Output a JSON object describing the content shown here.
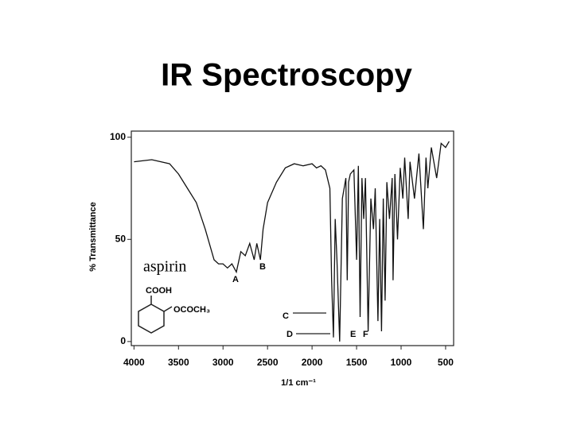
{
  "chart_data": {
    "type": "line",
    "title": "IR Spectroscopy",
    "x_label": "1/1 cm⁻¹",
    "y_label": "% Transmittance",
    "annotations": [
      "aspirin",
      "A",
      "B",
      "C",
      "D",
      "E",
      "F",
      "COOH",
      "OCOCH₃"
    ],
    "xlim": [
      4030,
      410
    ],
    "xticks": [
      4000,
      3500,
      3000,
      2500,
      2000,
      1500,
      1000,
      500
    ],
    "ylim": [
      -2,
      103
    ],
    "yticks": [
      0,
      50,
      100
    ],
    "series": [
      {
        "name": "aspirin",
        "color": "#111111",
        "x": [
          4000,
          3800,
          3600,
          3500,
          3400,
          3300,
          3200,
          3100,
          3050,
          3000,
          2950,
          2900,
          2850,
          2800,
          2750,
          2700,
          2650,
          2620,
          2580,
          2550,
          2500,
          2400,
          2300,
          2200,
          2100,
          2000,
          1950,
          1900,
          1850,
          1800,
          1780,
          1760,
          1740,
          1720,
          1690,
          1660,
          1620,
          1605,
          1590,
          1570,
          1530,
          1500,
          1480,
          1460,
          1440,
          1420,
          1400,
          1370,
          1340,
          1310,
          1290,
          1260,
          1240,
          1220,
          1200,
          1180,
          1160,
          1130,
          1100,
          1090,
          1070,
          1040,
          1010,
          980,
          960,
          920,
          900,
          850,
          800,
          750,
          720,
          700,
          660,
          600,
          550,
          500,
          460
        ],
        "values": [
          88,
          89,
          87,
          82,
          75,
          68,
          55,
          40,
          38,
          38,
          36,
          38,
          34,
          44,
          42,
          48,
          40,
          48,
          40,
          55,
          68,
          78,
          85,
          87,
          86,
          87,
          85,
          86,
          84,
          75,
          30,
          2,
          60,
          40,
          0,
          70,
          80,
          30,
          78,
          82,
          84,
          40,
          86,
          12,
          80,
          60,
          80,
          5,
          70,
          55,
          75,
          10,
          60,
          5,
          70,
          20,
          78,
          60,
          80,
          30,
          82,
          50,
          85,
          70,
          90,
          60,
          88,
          70,
          92,
          55,
          90,
          75,
          95,
          80,
          97,
          95,
          98
        ]
      }
    ]
  }
}
